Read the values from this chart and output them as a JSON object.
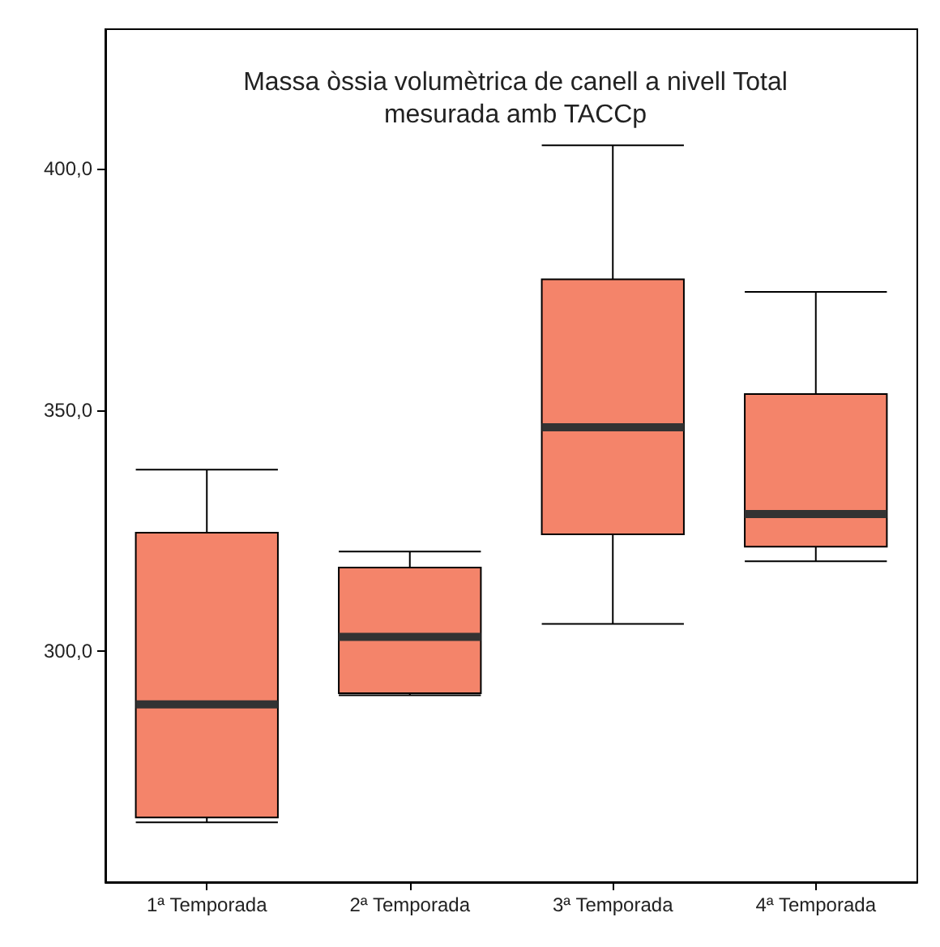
{
  "chart_data": {
    "type": "box",
    "title": "Massa òssia volumètrica de canell a nivell Total\nmesurada amb TACCp",
    "categories": [
      "1ª Temporada",
      "2ª Temporada",
      "3ª Temporada",
      "4ª Temporada"
    ],
    "color": "#f4846a",
    "boxes": [
      {
        "low": 264.4,
        "q1": 265.4,
        "median": 288.9,
        "q3": 324.5,
        "high": 337.6
      },
      {
        "low": 290.8,
        "q1": 291.2,
        "median": 302.9,
        "q3": 317.3,
        "high": 320.6
      },
      {
        "low": 305.6,
        "q1": 324.2,
        "median": 346.4,
        "q3": 377.1,
        "high": 404.9
      },
      {
        "low": 318.6,
        "q1": 321.6,
        "median": 328.4,
        "q3": 353.3,
        "high": 374.5
      }
    ],
    "ylim": [
      252,
      429
    ],
    "yticks": [
      {
        "value": 300,
        "label": "300,0"
      },
      {
        "value": 350,
        "label": "350,0"
      },
      {
        "value": 400,
        "label": "400,0"
      }
    ],
    "grid": false
  }
}
